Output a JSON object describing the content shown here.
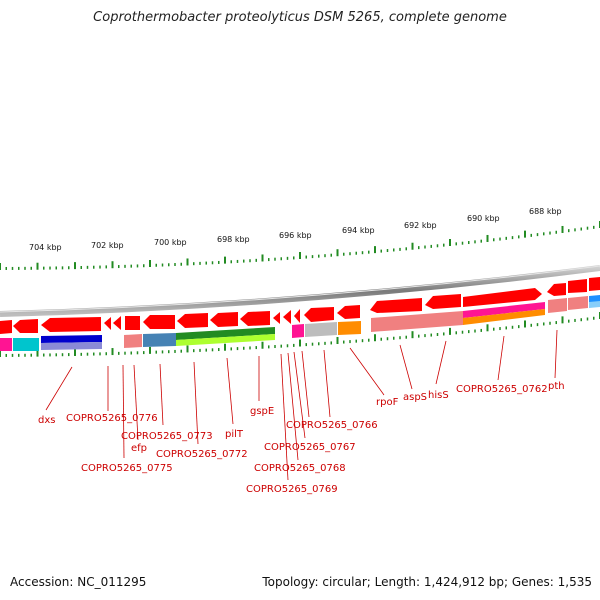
{
  "title": "Coprothermobacter proteolyticus DSM 5265, complete genome",
  "accession_label": "Accession: NC_011295",
  "topology_label": "Topology: circular; Length: 1,424,912 bp; Genes: 1,535",
  "colors": {
    "label": "#cc0000",
    "gene": "#ff0000",
    "backbone": "#888888",
    "tick": "#228b22"
  },
  "scale_labels": [
    "704 kbp",
    "702 kbp",
    "700 kbp",
    "698 kbp",
    "696 kbp",
    "694 kbp",
    "692 kbp",
    "690 kbp",
    "688 kbp"
  ],
  "gene_labels": [
    "dxs",
    "COPRO5265_0776",
    "COPRO5265_0775",
    "efp",
    "COPRO5265_0773",
    "COPRO5265_0772",
    "pilT",
    "gspE",
    "COPRO5265_0769",
    "COPRO5265_0768",
    "COPRO5265_0767",
    "COPRO5265_0766",
    "rpoF",
    "aspS",
    "hisS",
    "COPRO5265_0762",
    "pth"
  ]
}
